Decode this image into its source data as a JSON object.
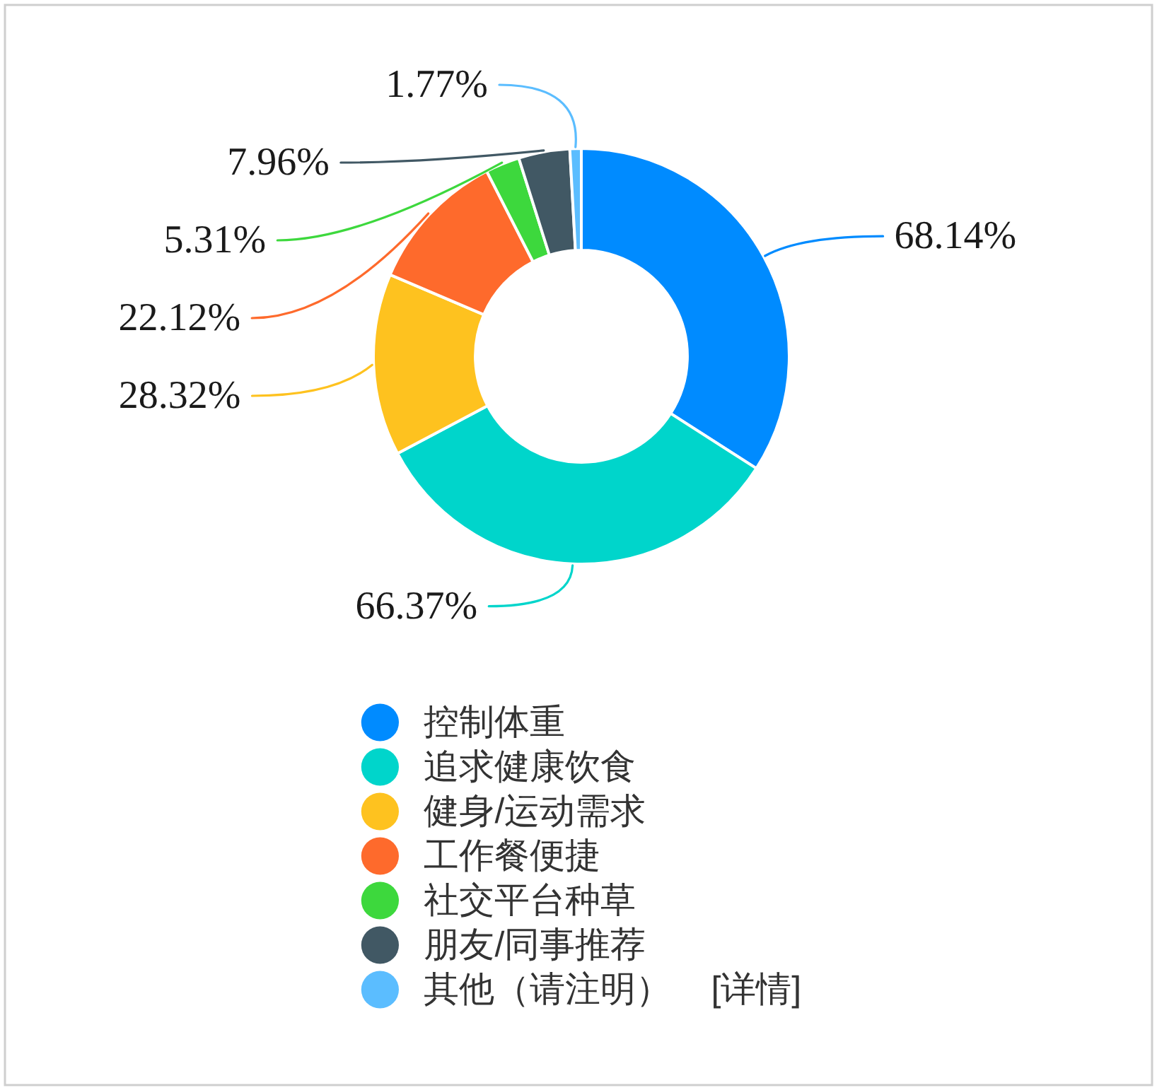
{
  "chart_data": {
    "type": "donut",
    "categories": [
      "控制体重",
      "追求健康饮食",
      "健身/运动需求",
      "工作餐便捷",
      "社交平台种草",
      "朋友/同事推荐",
      "其他（请注明）"
    ],
    "values": [
      68.14,
      66.37,
      28.32,
      22.12,
      5.31,
      7.96,
      1.77
    ],
    "colors": [
      "#008bff",
      "#00d5cb",
      "#fec21f",
      "#fe6a2c",
      "#3dd83d",
      "#415864",
      "#5bbdff"
    ],
    "value_labels": [
      "68.14%",
      "66.37%",
      "28.32%",
      "22.12%",
      "5.31%",
      "7.96%",
      "1.77%"
    ],
    "legend": "bottom",
    "annotations": [
      "[详情]"
    ]
  }
}
